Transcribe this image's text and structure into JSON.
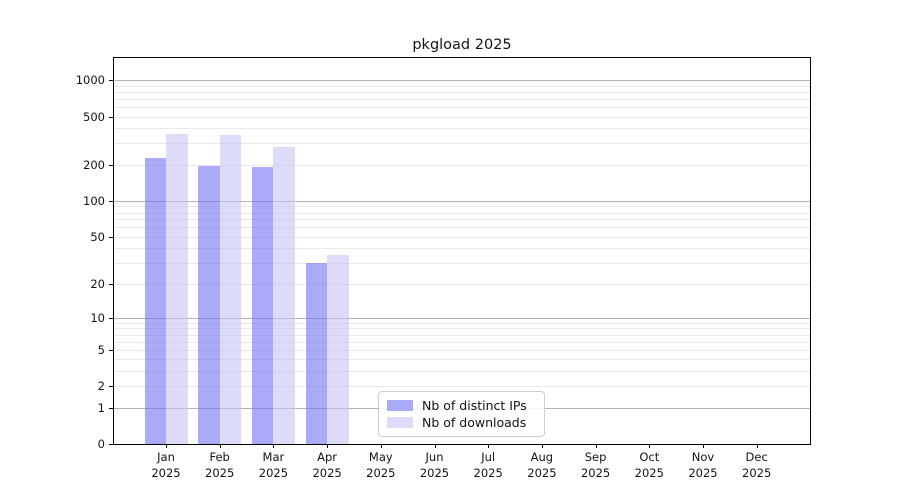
{
  "title": "pkgload 2025",
  "legend": {
    "items": [
      {
        "label": "Nb of distinct IPs",
        "color": "#aaaaf8"
      },
      {
        "label": "Nb of downloads",
        "color": "#dcdcf8"
      }
    ]
  },
  "colors": {
    "series_distinct_ips": "#aaaaf8",
    "series_downloads": "#dcdcf8",
    "grid_major": "#b3b3b3",
    "grid_minor": "#e9e9e9",
    "axis": "#000000"
  },
  "chart_data": {
    "type": "bar",
    "title": "pkgload 2025",
    "categories": [
      "Jan",
      "Feb",
      "Mar",
      "Apr",
      "May",
      "Jun",
      "Jul",
      "Aug",
      "Sep",
      "Oct",
      "Nov",
      "Dec"
    ],
    "x_tick_year": "2025",
    "series": [
      {
        "name": "Nb of distinct IPs",
        "color": "#aaaaf8",
        "values": [
          225,
          196,
          191,
          30,
          0,
          0,
          0,
          0,
          0,
          0,
          0,
          0
        ]
      },
      {
        "name": "Nb of downloads",
        "color": "#dcdcf8",
        "values": [
          356,
          352,
          282,
          35,
          0,
          0,
          0,
          0,
          0,
          0,
          0,
          0
        ]
      }
    ],
    "yscale": "log1p (position proportional to log10(1+y))",
    "yticks": [
      0,
      1,
      2,
      5,
      10,
      20,
      50,
      100,
      200,
      500,
      1000
    ],
    "ylim": [
      0,
      1500
    ],
    "xlabel": "",
    "ylabel": "",
    "grid": "horizontal, faint minors at 2-9 of each decade, darker majors at 1/10/100/1000",
    "legend_position": "inside plot, lower center-left"
  }
}
